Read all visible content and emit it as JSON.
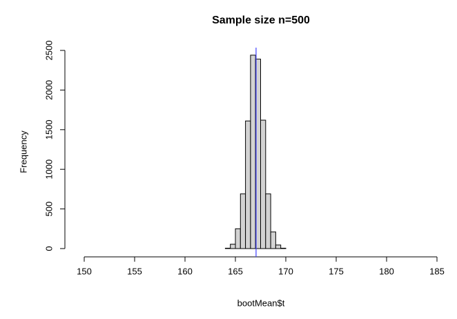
{
  "chart_data": {
    "type": "histogram",
    "title": "Sample size n=500",
    "xlabel": "bootMean$t",
    "ylabel": "Frequency",
    "bins": [
      164,
      164.5,
      165,
      165.5,
      166,
      166.5,
      167,
      167.5,
      168,
      168.5,
      169,
      169.5,
      170
    ],
    "values": [
      5,
      55,
      250,
      690,
      1610,
      2440,
      2390,
      1620,
      690,
      210,
      45,
      5
    ],
    "color": "#d3d3d3",
    "edgecolor": "#000000",
    "xlim": [
      150,
      185
    ],
    "xticks": [
      150,
      155,
      160,
      165,
      170,
      175,
      180,
      185
    ],
    "ylim": [
      0,
      2500
    ],
    "yticks": [
      0,
      500,
      1000,
      1500,
      2000,
      2500
    ],
    "vline": {
      "value": 167.05,
      "color": "#4040ff"
    }
  }
}
